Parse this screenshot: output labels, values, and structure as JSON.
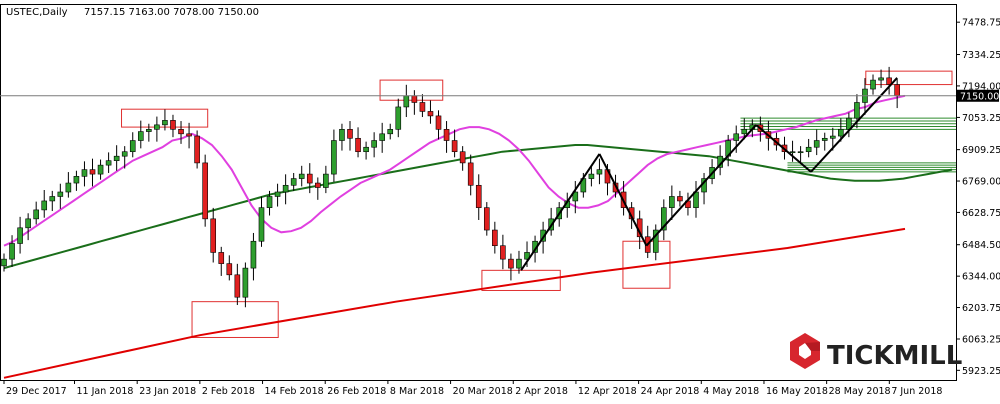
{
  "header": {
    "symbol": "USTEC,Daily",
    "ohlc": "7157.15 7163.00 7078.00 7150.00"
  },
  "logo": {
    "text": "TICKMILL"
  },
  "colors": {
    "bull": "#2e9e2e",
    "bear": "#e02020",
    "ma_short": "#e040e0",
    "ma_mid": "#1a6e1a",
    "ma_long": "#e00000",
    "box": "#e03030",
    "zone": "#2e8b2e",
    "price_line": "#7a7a7a"
  },
  "chart_data": {
    "type": "candlestick",
    "title": "USTEC,Daily",
    "ylim": [
      5880,
      7560
    ],
    "yticks": [
      "7478.75",
      "7334.25",
      "7194.00",
      "7053.25",
      "6909.25",
      "6769.00",
      "6628.75",
      "6484.50",
      "6344.00",
      "6203.75",
      "6063.25",
      "5923.25"
    ],
    "current_price": {
      "value": 7150,
      "label": "7150.00"
    },
    "xticks": [
      {
        "label": "29 Dec 2017",
        "i": 0
      },
      {
        "label": "11 Jan 2018",
        "i": 9
      },
      {
        "label": "23 Jan 2018",
        "i": 17
      },
      {
        "label": "2 Feb 2018",
        "i": 25
      },
      {
        "label": "14 Feb 2018",
        "i": 33
      },
      {
        "label": "26 Feb 2018",
        "i": 41
      },
      {
        "label": "8 Mar 2018",
        "i": 49
      },
      {
        "label": "20 Mar 2018",
        "i": 57
      },
      {
        "label": "2 Apr 2018",
        "i": 65
      },
      {
        "label": "12 Apr 2018",
        "i": 73
      },
      {
        "label": "24 Apr 2018",
        "i": 81
      },
      {
        "label": "4 May 2018",
        "i": 89
      },
      {
        "label": "16 May 2018",
        "i": 97
      },
      {
        "label": "28 May 2018",
        "i": 105
      },
      {
        "label": "7 Jun 2018",
        "i": 113
      }
    ],
    "closes": [
      6420,
      6490,
      6560,
      6600,
      6640,
      6680,
      6700,
      6720,
      6760,
      6790,
      6820,
      6800,
      6840,
      6860,
      6880,
      6900,
      6950,
      6990,
      7000,
      7020,
      7040,
      7000,
      6980,
      6970,
      6850,
      6600,
      6450,
      6400,
      6350,
      6250,
      6380,
      6500,
      6650,
      6700,
      6720,
      6750,
      6780,
      6800,
      6760,
      6740,
      6800,
      6950,
      7000,
      6960,
      6900,
      6920,
      6950,
      6980,
      7000,
      7100,
      7150,
      7120,
      7080,
      7060,
      7000,
      6950,
      6900,
      6850,
      6750,
      6650,
      6550,
      6480,
      6420,
      6380,
      6420,
      6450,
      6500,
      6550,
      6600,
      6650,
      6680,
      6720,
      6780,
      6800,
      6820,
      6760,
      6720,
      6650,
      6600,
      6520,
      6450,
      6550,
      6650,
      6700,
      6680,
      6650,
      6720,
      6780,
      6830,
      6880,
      6950,
      6980,
      7000,
      7020,
      6990,
      6960,
      6930,
      6900,
      6900,
      6900,
      6920,
      6950,
      6960,
      6970,
      7000,
      7050,
      7120,
      7180,
      7220,
      7230,
      7200,
      7150
    ],
    "ma_short": [
      6480,
      6500,
      6530,
      6560,
      6590,
      6620,
      6650,
      6680,
      6710,
      6740,
      6770,
      6800,
      6830,
      6860,
      6880,
      6900,
      6920,
      6950,
      6960,
      6980,
      6960,
      6930,
      6880,
      6820,
      6740,
      6660,
      6600,
      6560,
      6540,
      6545,
      6560,
      6590,
      6630,
      6665,
      6700,
      6730,
      6760,
      6780,
      6800,
      6820,
      6850,
      6880,
      6910,
      6940,
      6960,
      6980,
      7000,
      7010,
      7010,
      7000,
      6980,
      6950,
      6910,
      6860,
      6800,
      6740,
      6700,
      6670,
      6650,
      6650,
      6660,
      6680,
      6720,
      6760,
      6800,
      6840,
      6870,
      6890,
      6900,
      6910,
      6920,
      6930,
      6940,
      6950,
      6960,
      6970,
      6975,
      6980,
      6990,
      7000,
      7010,
      7025,
      7040,
      7050,
      7060,
      7070,
      7090,
      7100,
      7120,
      7130,
      7140,
      7150
    ],
    "ma_short_start": 0,
    "ma_mid_values": [
      6380,
      6395,
      6410,
      6425,
      6440,
      6455,
      6470,
      6485,
      6500,
      6515,
      6530,
      6545,
      6560,
      6575,
      6590,
      6605,
      6620,
      6635,
      6650,
      6665,
      6680,
      6695,
      6710,
      6720,
      6730,
      6740,
      6750,
      6760,
      6770,
      6780,
      6790,
      6800,
      6810,
      6820,
      6830,
      6840,
      6850,
      6860,
      6870,
      6880,
      6890,
      6900,
      6905,
      6910,
      6915,
      6920,
      6925,
      6930,
      6930,
      6925,
      6920,
      6915,
      6910,
      6905,
      6900,
      6895,
      6890,
      6885,
      6880,
      6870,
      6860,
      6850,
      6840,
      6830,
      6820,
      6810,
      6800,
      6790,
      6780,
      6775,
      6770,
      6770,
      6770,
      6775,
      6780,
      6790,
      6800,
      6810,
      6820
    ],
    "ma_long": [
      [
        0,
        5890
      ],
      [
        25,
        6080
      ],
      [
        50,
        6230
      ],
      [
        75,
        6360
      ],
      [
        100,
        6470
      ],
      [
        115,
        6555
      ]
    ],
    "trend_lines": [
      [
        [
          66,
          6370
        ],
        [
          76,
          6890
        ]
      ],
      [
        [
          76,
          6890
        ],
        [
          82,
          6480
        ]
      ],
      [
        [
          82,
          6480
        ],
        [
          96,
          7020
        ]
      ],
      [
        [
          96,
          7020
        ],
        [
          103,
          6810
        ]
      ],
      [
        [
          103,
          6810
        ],
        [
          114,
          7230
        ]
      ]
    ],
    "boxes": [
      {
        "from": 15,
        "to": 26,
        "low": 7010,
        "high": 7090
      },
      {
        "from": 24,
        "to": 35,
        "low": 6070,
        "high": 6230
      },
      {
        "from": 48,
        "to": 56,
        "low": 7130,
        "high": 7220
      },
      {
        "from": 61,
        "to": 71,
        "low": 6280,
        "high": 6370
      },
      {
        "from": 79,
        "to": 85,
        "low": 6290,
        "high": 6500
      },
      {
        "from": 110,
        "to": 121,
        "low": 7200,
        "high": 7260
      }
    ],
    "zones": [
      {
        "from": 94,
        "to": 121,
        "low": 7000,
        "high": 7050
      },
      {
        "from": 100,
        "to": 121,
        "low": 6810,
        "high": 6850
      }
    ]
  }
}
